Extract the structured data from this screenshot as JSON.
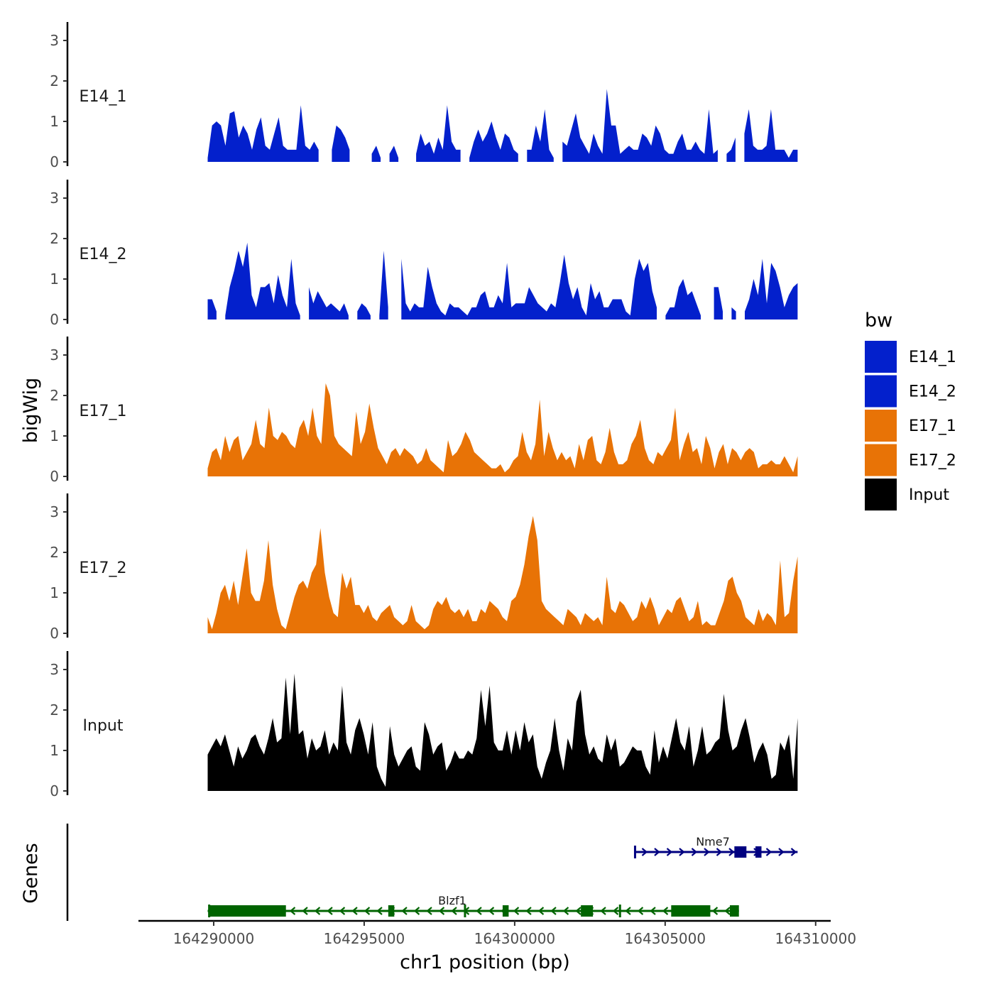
{
  "chart_data": {
    "type": "area",
    "chromosome": "chr1",
    "xlabel": "chr1 position (bp)",
    "ylabel": "bigWig",
    "genes_label": "Genes",
    "xlim": [
      164287500,
      164310500
    ],
    "data_range": [
      164289800,
      164309400
    ],
    "ylim": [
      0,
      3.4
    ],
    "y_ticks": [
      0,
      1,
      2,
      3
    ],
    "x_ticks": [
      164290000,
      164295000,
      164300000,
      164305000,
      164310000
    ],
    "x_tick_labels": [
      "164290000",
      "164295000",
      "164300000",
      "164305000",
      "164310000"
    ],
    "grid": false,
    "legend": {
      "title": "bw",
      "position": "right",
      "items": [
        {
          "label": "E14_1",
          "color": "#0320CC"
        },
        {
          "label": "E14_2",
          "color": "#0320CC"
        },
        {
          "label": "E17_1",
          "color": "#E87306"
        },
        {
          "label": "E17_2",
          "color": "#E87306"
        },
        {
          "label": "Input",
          "color": "#000000"
        }
      ]
    },
    "series": [
      {
        "name": "E14_1",
        "color": "#0320CC",
        "values": [
          0.1,
          0.9,
          1,
          0.9,
          0.4,
          1.2,
          1.25,
          0.6,
          0.9,
          0.7,
          0.3,
          0.8,
          1.1,
          0.4,
          0.3,
          0.7,
          1.1,
          0.4,
          0.3,
          0.3,
          0.3,
          1.4,
          0.4,
          0.3,
          0.5,
          0.3,
          null,
          null,
          0.3,
          0.9,
          0.8,
          0.6,
          0.3,
          null,
          null,
          null,
          null,
          0.2,
          0.4,
          0.1,
          null,
          0.2,
          0.4,
          0.1,
          null,
          null,
          null,
          0.2,
          0.7,
          0.4,
          0.5,
          0.2,
          0.6,
          0.3,
          1.4,
          0.5,
          0.3,
          0.3,
          null,
          0.1,
          0.5,
          0.8,
          0.5,
          0.7,
          1,
          0.6,
          0.3,
          0.7,
          0.6,
          0.3,
          0.2,
          null,
          0.3,
          0.3,
          0.9,
          0.5,
          1.3,
          0.3,
          0.1,
          null,
          0.5,
          0.4,
          0.8,
          1.2,
          0.6,
          0.4,
          0.2,
          0.7,
          0.4,
          0.2,
          1.8,
          0.9,
          0.9,
          0.2,
          0.3,
          0.4,
          0.3,
          0.3,
          0.7,
          0.6,
          0.4,
          0.9,
          0.7,
          0.3,
          0.2,
          0.2,
          0.5,
          0.7,
          0.3,
          0.3,
          0.5,
          0.3,
          0.2,
          1.3,
          0.2,
          0.3,
          null,
          0.2,
          0.3,
          0.6,
          null,
          0.7,
          1.3,
          0.4,
          0.3,
          0.3,
          0.4,
          1.3,
          0.3,
          0.3,
          0.3,
          0.1,
          0.3,
          0.3
        ]
      },
      {
        "name": "E14_2",
        "color": "#0320CC",
        "values": [
          0.5,
          0.5,
          0.2,
          null,
          0.1,
          0.8,
          1.2,
          1.7,
          1.3,
          1.9,
          0.6,
          0.3,
          0.8,
          0.8,
          0.9,
          0.4,
          1.1,
          0.6,
          0.3,
          1.5,
          0.4,
          0.1,
          null,
          0.8,
          0.4,
          0.7,
          0.5,
          0.3,
          0.4,
          0.3,
          0.2,
          0.4,
          0.1,
          null,
          0.2,
          0.4,
          0.3,
          0.1,
          null,
          0.1,
          1.7,
          0.3,
          null,
          null,
          1.5,
          0.4,
          0.2,
          0.4,
          0.3,
          0.3,
          1.3,
          0.8,
          0.4,
          0.2,
          0.1,
          0.4,
          0.3,
          0.3,
          0.2,
          0.1,
          0.3,
          0.3,
          0.6,
          0.7,
          0.3,
          0.3,
          0.6,
          0.4,
          1.4,
          0.3,
          0.4,
          0.4,
          0.4,
          0.8,
          0.6,
          0.4,
          0.3,
          0.2,
          0.4,
          0.3,
          0.9,
          1.6,
          0.9,
          0.5,
          0.8,
          0.3,
          0.1,
          0.9,
          0.5,
          0.7,
          0.3,
          0.3,
          0.5,
          0.5,
          0.5,
          0.2,
          0.1,
          1,
          1.5,
          1.2,
          1.4,
          0.7,
          0.3,
          null,
          0.1,
          0.3,
          0.3,
          0.8,
          1,
          0.6,
          0.7,
          0.4,
          0.1,
          null,
          null,
          0.8,
          0.8,
          0.2,
          null,
          0.3,
          0.2,
          null,
          0.2,
          0.5,
          1,
          0.6,
          1.5,
          0.4,
          1.4,
          1.2,
          0.8,
          0.3,
          0.6,
          0.8,
          0.9
        ]
      },
      {
        "name": "E17_1",
        "color": "#E87306",
        "values": [
          0.2,
          0.6,
          0.7,
          0.4,
          1.0,
          0.6,
          0.9,
          1.0,
          0.4,
          0.6,
          0.8,
          1.4,
          0.8,
          0.7,
          1.7,
          1.0,
          0.9,
          1.1,
          1.0,
          0.8,
          0.7,
          1.2,
          1.4,
          1.0,
          1.7,
          1.0,
          0.8,
          2.3,
          2.0,
          1.0,
          0.8,
          0.7,
          0.6,
          0.5,
          1.6,
          0.8,
          1.1,
          1.8,
          1.2,
          0.7,
          0.5,
          0.3,
          0.6,
          0.7,
          0.5,
          0.7,
          0.6,
          0.5,
          0.3,
          0.4,
          0.7,
          0.4,
          0.3,
          0.2,
          0.1,
          0.9,
          0.5,
          0.6,
          0.8,
          1.1,
          0.9,
          0.6,
          0.5,
          0.4,
          0.3,
          0.2,
          0.2,
          0.3,
          0.1,
          0.2,
          0.4,
          0.5,
          1.1,
          0.6,
          0.4,
          0.8,
          1.9,
          0.5,
          1.1,
          0.7,
          0.4,
          0.6,
          0.4,
          0.5,
          0.2,
          0.8,
          0.4,
          0.9,
          1.0,
          0.4,
          0.3,
          0.6,
          1.2,
          0.6,
          0.3,
          0.3,
          0.4,
          0.8,
          1.0,
          1.4,
          0.7,
          0.4,
          0.3,
          0.6,
          0.5,
          0.7,
          0.9,
          1.7,
          0.4,
          0.8,
          1.1,
          0.6,
          0.7,
          0.3,
          1.0,
          0.7,
          0.2,
          0.6,
          0.8,
          0.3,
          0.7,
          0.6,
          0.4,
          0.6,
          0.7,
          0.6,
          0.2,
          0.3,
          0.3,
          0.4,
          0.3,
          0.3,
          0.5,
          0.3,
          0.1,
          0.5
        ]
      },
      {
        "name": "E17_2",
        "color": "#E87306",
        "values": [
          0.4,
          0.1,
          0.5,
          1.0,
          1.2,
          0.8,
          1.3,
          0.7,
          1.4,
          2.1,
          1.0,
          0.8,
          0.8,
          1.3,
          2.3,
          1.2,
          0.6,
          0.2,
          0.1,
          0.5,
          0.9,
          1.2,
          1.3,
          1.1,
          1.5,
          1.7,
          2.6,
          1.5,
          0.9,
          0.5,
          0.4,
          1.5,
          1.1,
          1.4,
          0.7,
          0.7,
          0.5,
          0.7,
          0.4,
          0.3,
          0.5,
          0.6,
          0.7,
          0.4,
          0.3,
          0.2,
          0.3,
          0.7,
          0.3,
          0.2,
          0.1,
          0.2,
          0.6,
          0.8,
          0.7,
          0.9,
          0.6,
          0.5,
          0.6,
          0.4,
          0.6,
          0.3,
          0.3,
          0.6,
          0.5,
          0.8,
          0.7,
          0.6,
          0.4,
          0.3,
          0.8,
          0.9,
          1.2,
          1.7,
          2.4,
          2.9,
          2.3,
          0.8,
          0.6,
          0.5,
          0.4,
          0.3,
          0.2,
          0.6,
          0.5,
          0.4,
          0.2,
          0.5,
          0.4,
          0.3,
          0.4,
          0.2,
          1.4,
          0.6,
          0.5,
          0.8,
          0.7,
          0.5,
          0.3,
          0.4,
          0.8,
          0.6,
          0.9,
          0.6,
          0.2,
          0.4,
          0.6,
          0.5,
          0.8,
          0.9,
          0.6,
          0.3,
          0.4,
          0.8,
          0.2,
          0.3,
          0.2,
          0.2,
          0.5,
          0.8,
          1.3,
          1.4,
          1.0,
          0.8,
          0.4,
          0.3,
          0.2,
          0.6,
          0.3,
          0.5,
          0.4,
          0.2,
          1.8,
          0.4,
          0.5,
          1.3,
          1.9
        ]
      },
      {
        "name": "Input",
        "color": "#000000",
        "values": [
          0.9,
          1.1,
          1.3,
          1.1,
          1.4,
          1.0,
          0.6,
          1.1,
          0.8,
          1.0,
          1.3,
          1.4,
          1.1,
          0.9,
          1.3,
          1.8,
          1.2,
          1.3,
          2.8,
          1.4,
          2.9,
          1.4,
          1.5,
          0.8,
          1.3,
          1.0,
          1.1,
          1.5,
          0.9,
          1.2,
          1.0,
          2.6,
          1.2,
          0.9,
          1.5,
          1.8,
          1.4,
          0.9,
          1.7,
          0.6,
          0.3,
          0.1,
          1.6,
          0.9,
          0.6,
          0.8,
          1.0,
          1.1,
          0.6,
          0.5,
          1.7,
          1.4,
          0.9,
          1.1,
          1.2,
          0.5,
          0.7,
          1.0,
          0.8,
          0.8,
          1.0,
          0.9,
          1.3,
          2.5,
          1.6,
          2.6,
          1.2,
          1.0,
          1.0,
          1.5,
          0.9,
          1.5,
          1.0,
          1.7,
          1.2,
          1.4,
          0.6,
          0.3,
          0.7,
          1.0,
          1.8,
          1.0,
          0.5,
          1.3,
          1.0,
          2.2,
          2.5,
          1.4,
          0.9,
          1.1,
          0.8,
          0.7,
          1.4,
          1.0,
          1.3,
          0.6,
          0.7,
          0.9,
          1.1,
          1.0,
          1.0,
          0.6,
          0.4,
          1.5,
          0.7,
          1.1,
          0.8,
          1.3,
          1.8,
          1.2,
          1.0,
          1.6,
          0.6,
          1.0,
          1.6,
          0.9,
          1.0,
          1.2,
          1.3,
          2.4,
          1.5,
          1.0,
          1.1,
          1.5,
          1.8,
          1.3,
          0.7,
          1.0,
          1.2,
          0.9,
          0.3,
          0.4,
          1.2,
          1.0,
          1.4,
          0.3,
          1.8
        ]
      }
    ],
    "genes": [
      {
        "name": "Nme7",
        "strand": "+",
        "color": "#000080",
        "start": 164304000,
        "end": 164309400,
        "exons": [
          [
            164307300,
            164307700
          ],
          [
            164308000,
            164308200
          ]
        ],
        "boundary_ticks": [
          164304000
        ]
      },
      {
        "name": "Blzf1",
        "strand": "-",
        "color": "#006400",
        "start": 164289800,
        "end": 164307450,
        "exons": [
          [
            164289850,
            164292400
          ],
          [
            164295800,
            164296000
          ],
          [
            164299600,
            164299800
          ],
          [
            164302200,
            164302600
          ],
          [
            164305200,
            164306500
          ],
          [
            164307150,
            164307450
          ]
        ],
        "boundary_ticks": [
          164289850,
          164298350,
          164303500
        ]
      }
    ]
  }
}
